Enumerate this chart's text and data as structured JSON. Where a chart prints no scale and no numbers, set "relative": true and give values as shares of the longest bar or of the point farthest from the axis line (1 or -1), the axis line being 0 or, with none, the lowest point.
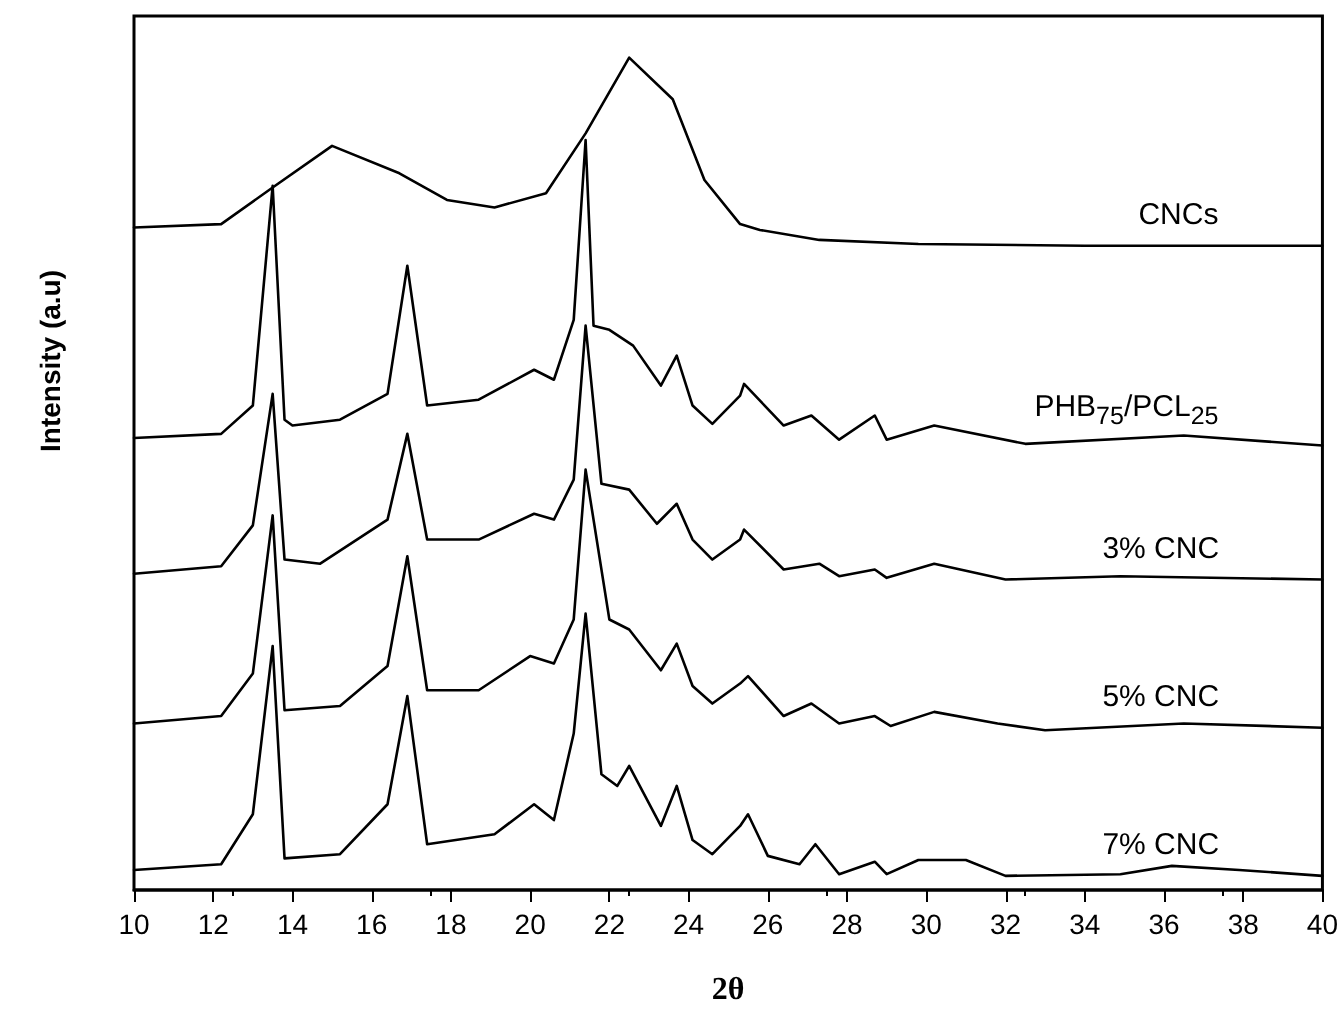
{
  "chart_data": {
    "type": "line",
    "relative": true,
    "xlabel": "2θ",
    "ylabel": "Intensity (a.u)",
    "xlim": [
      10,
      40
    ],
    "xticks": [
      10,
      12,
      14,
      16,
      18,
      20,
      22,
      24,
      26,
      28,
      30,
      32,
      34,
      36,
      38,
      40
    ],
    "grid": false,
    "legend": false,
    "marker": "none",
    "line_style": "solid",
    "series": [
      {
        "name": "CNCs",
        "color": "#000000",
        "x": [
          10,
          12.2,
          13.5,
          15.0,
          16.7,
          17.9,
          19.1,
          20.4,
          21.4,
          22.5,
          23.6,
          24.4,
          25.3,
          25.8,
          27.3,
          29.8,
          34,
          40
        ],
        "values": [
          0.796,
          0.8,
          0.844,
          0.894,
          0.861,
          0.829,
          0.82,
          0.837,
          0.909,
          1.0,
          0.95,
          0.853,
          0.8,
          0.793,
          0.781,
          0.776,
          0.774,
          0.774
        ]
      },
      {
        "name": "PHB$_{75}$/PCL$_{25}$",
        "color": "#000000",
        "x": [
          10,
          12.2,
          13.0,
          13.5,
          13.8,
          14.0,
          15.2,
          16.4,
          16.9,
          17.4,
          18.7,
          20.1,
          20.6,
          21.1,
          21.4,
          21.6,
          22.0,
          22.6,
          23.3,
          23.7,
          24.1,
          24.6,
          25.3,
          25.4,
          26.4,
          27.1,
          27.8,
          28.7,
          29.0,
          30.2,
          32.5,
          36.5,
          40
        ],
        "values": [
          0.543,
          0.548,
          0.582,
          0.846,
          0.565,
          0.558,
          0.565,
          0.596,
          0.75,
          0.582,
          0.589,
          0.625,
          0.613,
          0.685,
          0.901,
          0.678,
          0.673,
          0.654,
          0.606,
          0.642,
          0.582,
          0.56,
          0.594,
          0.608,
          0.558,
          0.57,
          0.541,
          0.57,
          0.541,
          0.558,
          0.536,
          0.546,
          0.534
        ]
      },
      {
        "name": "3% CNC",
        "color": "#000000",
        "x": [
          10,
          12.2,
          13.0,
          13.5,
          13.8,
          14.7,
          16.4,
          16.9,
          17.4,
          18.7,
          20.1,
          20.6,
          21.1,
          21.4,
          21.8,
          22.5,
          23.2,
          23.7,
          24.1,
          24.6,
          25.3,
          25.4,
          26.4,
          27.3,
          27.8,
          28.7,
          29.0,
          30.2,
          32.0,
          34.9,
          40
        ],
        "values": [
          0.38,
          0.389,
          0.438,
          0.596,
          0.397,
          0.392,
          0.445,
          0.548,
          0.421,
          0.421,
          0.452,
          0.445,
          0.493,
          0.678,
          0.488,
          0.481,
          0.44,
          0.464,
          0.421,
          0.397,
          0.421,
          0.433,
          0.385,
          0.392,
          0.377,
          0.385,
          0.375,
          0.392,
          0.373,
          0.377,
          0.373
        ]
      },
      {
        "name": "5% CNC",
        "color": "#000000",
        "x": [
          10,
          12.2,
          13.0,
          13.5,
          13.8,
          15.2,
          16.4,
          16.9,
          17.4,
          18.7,
          20.0,
          20.6,
          21.1,
          21.4,
          22.0,
          22.5,
          23.3,
          23.7,
          24.1,
          24.6,
          25.3,
          25.5,
          26.4,
          27.1,
          27.8,
          28.7,
          29.1,
          30.2,
          31.8,
          33.0,
          36.5,
          40
        ],
        "values": [
          0.2,
          0.209,
          0.26,
          0.45,
          0.216,
          0.221,
          0.269,
          0.401,
          0.24,
          0.24,
          0.281,
          0.272,
          0.325,
          0.505,
          0.325,
          0.313,
          0.264,
          0.296,
          0.245,
          0.224,
          0.248,
          0.257,
          0.209,
          0.224,
          0.2,
          0.209,
          0.197,
          0.214,
          0.2,
          0.192,
          0.2,
          0.195
        ]
      },
      {
        "name": "7% CNC",
        "color": "#000000",
        "x": [
          10,
          12.2,
          13.0,
          13.5,
          13.8,
          15.2,
          16.4,
          16.9,
          17.4,
          19.1,
          20.1,
          20.6,
          21.1,
          21.4,
          21.8,
          22.2,
          22.5,
          23.3,
          23.7,
          24.1,
          24.6,
          25.3,
          25.5,
          26.0,
          26.8,
          27.2,
          27.8,
          28.7,
          29.0,
          29.8,
          31.0,
          32.0,
          34.9,
          36.2,
          37.9,
          40
        ],
        "values": [
          0.024,
          0.031,
          0.091,
          0.293,
          0.038,
          0.043,
          0.103,
          0.233,
          0.055,
          0.067,
          0.103,
          0.084,
          0.188,
          0.332,
          0.139,
          0.125,
          0.149,
          0.077,
          0.125,
          0.06,
          0.043,
          0.077,
          0.091,
          0.041,
          0.031,
          0.055,
          0.019,
          0.034,
          0.019,
          0.036,
          0.036,
          0.017,
          0.019,
          0.029,
          0.024,
          0.017
        ]
      }
    ]
  }
}
